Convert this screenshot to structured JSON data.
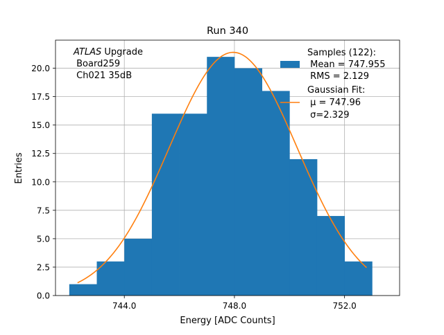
{
  "chart_data": {
    "type": "bar",
    "title": "Run 340",
    "xlabel": "Energy [ADC Counts]",
    "ylabel": "Entries",
    "xlim": [
      741.5,
      754.0
    ],
    "ylim": [
      0,
      22.47
    ],
    "grid": true,
    "x_ticks": [
      744.0,
      748.0,
      752.0
    ],
    "x_tick_labels": [
      "744.0",
      "748.0",
      "752.0"
    ],
    "y_ticks": [
      0,
      2.5,
      5,
      7.5,
      10,
      12.5,
      15,
      17.5,
      20
    ],
    "y_tick_labels": [
      "0.0",
      "2.5",
      "5.0",
      "7.5",
      "10.0",
      "12.5",
      "15.0",
      "17.5",
      "20.0"
    ],
    "annotation": {
      "line1_italic": "ATLAS",
      "line1_rest": " Upgrade",
      "line2": " Board259",
      "line3": " Ch021 35dB"
    },
    "legend": {
      "placement": "upper right",
      "histogram_lines": [
        "Samples (122):",
        " Mean = 747.955",
        " RMS = 2.129"
      ],
      "fit_lines": [
        "Gaussian Fit:",
        " μ = 747.96",
        " σ=2.329"
      ]
    },
    "bin_edges": [
      742.0,
      743.0,
      744.0,
      745.0,
      746.0,
      747.0,
      748.0,
      749.0,
      750.0,
      751.0,
      752.0,
      753.0
    ],
    "counts": [
      1,
      3,
      5,
      16,
      16,
      21,
      20,
      18,
      12,
      7,
      3
    ],
    "fit": {
      "mu": 747.955,
      "sigma": 2.329,
      "amplitude": 21.4,
      "x_range": [
        742.3,
        752.8
      ]
    },
    "colors": {
      "bars": "#1f77b4",
      "fit": "#ff7f0e",
      "grid": "#b0b0b0"
    }
  }
}
